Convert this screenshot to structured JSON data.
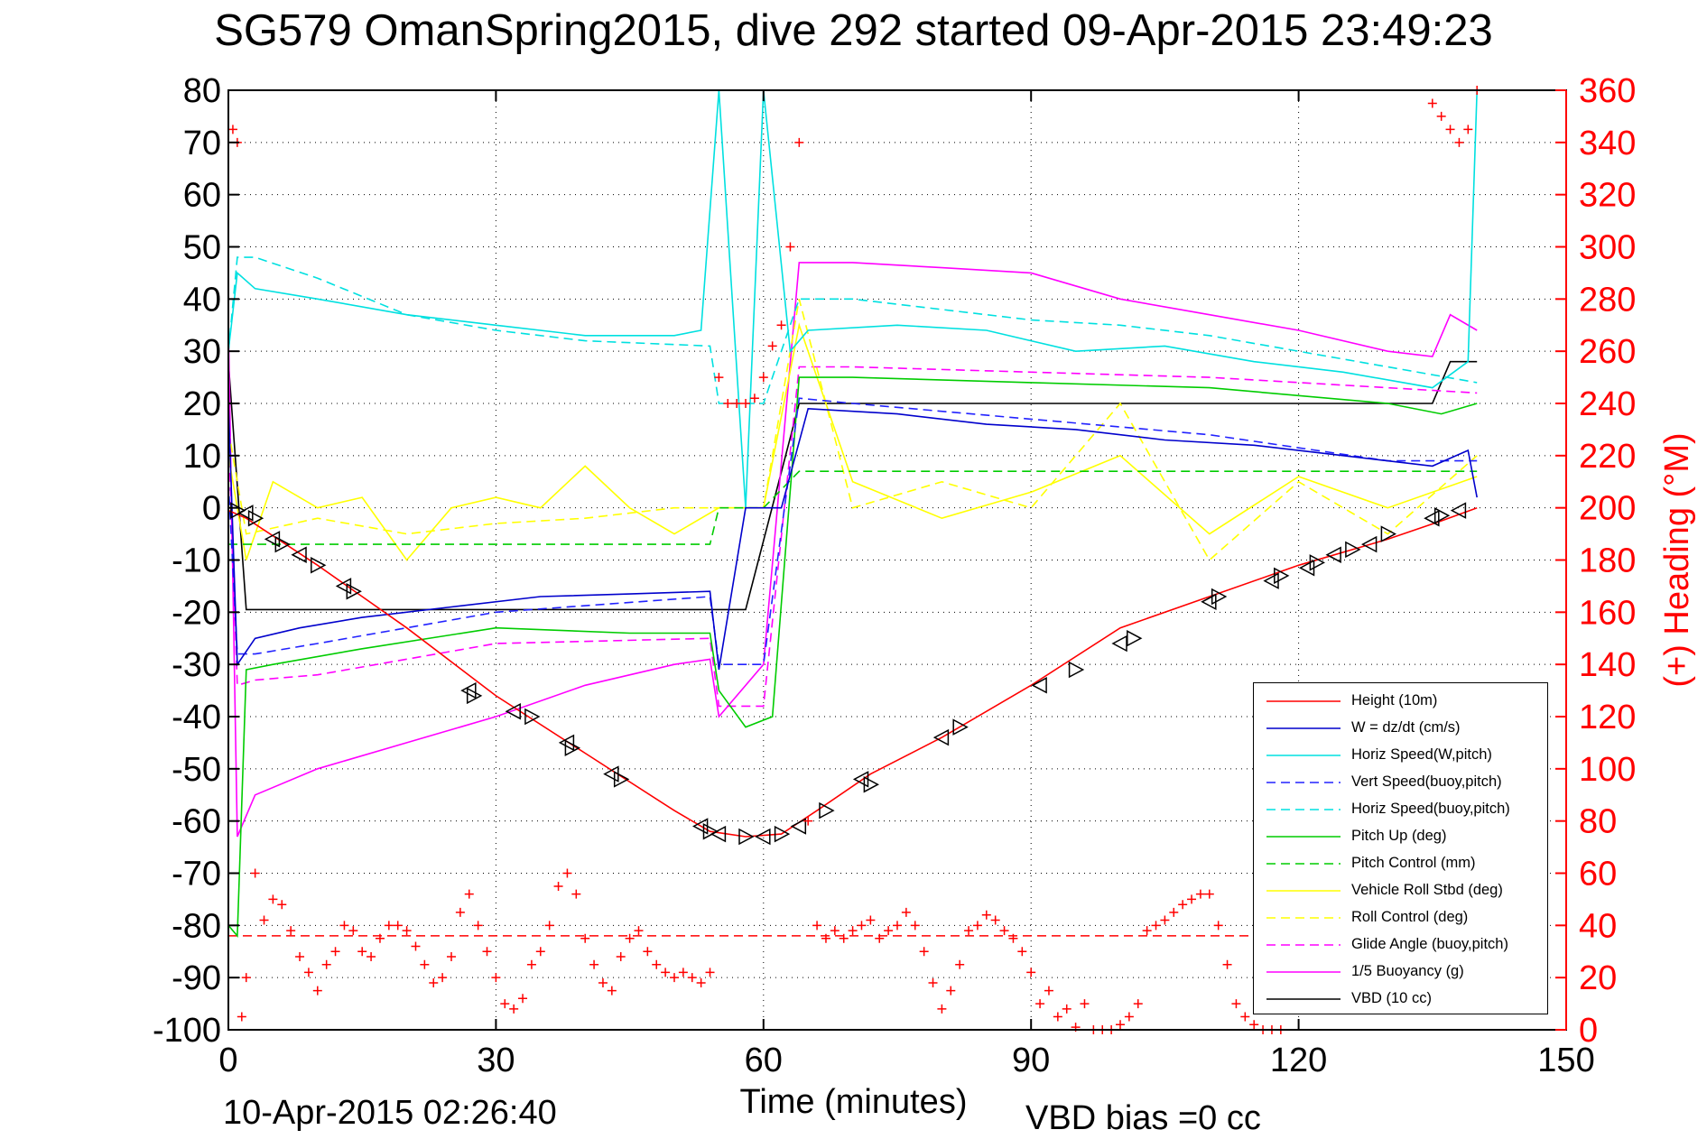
{
  "title": "SG579 OmanSpring2015, dive 292 started 09-Apr-2015 23:49:23",
  "footer": {
    "end_time": "10-Apr-2015 02:26:40",
    "vbd_bias": "VBD bias =0 cc"
  },
  "chart_data": {
    "type": "line",
    "title": "SG579 OmanSpring2015, dive 292 started 09-Apr-2015 23:49:23",
    "xlabel": "Time (minutes)",
    "ylabel": "",
    "y2label": "(+) Heading (°M)",
    "xlim": [
      0,
      150
    ],
    "ylim": [
      -100,
      80
    ],
    "y2lim": [
      0,
      360
    ],
    "x_ticks": [
      0,
      30,
      60,
      90,
      120,
      150
    ],
    "y_ticks": [
      80,
      70,
      60,
      50,
      40,
      30,
      20,
      10,
      0,
      -10,
      -20,
      -30,
      -40,
      -50,
      -60,
      -70,
      -80,
      -90,
      -100
    ],
    "y2_ticks": [
      360,
      340,
      320,
      300,
      280,
      260,
      240,
      220,
      200,
      180,
      160,
      140,
      120,
      100,
      80,
      60,
      40,
      20,
      0
    ],
    "grid": true,
    "legend_position": "lower-right",
    "series": [
      {
        "name": "Height (10m)",
        "color": "#ff0000",
        "style": "solid",
        "x": [
          0,
          2,
          10,
          20,
          30,
          40,
          50,
          54,
          58,
          62,
          66,
          72,
          80,
          90,
          100,
          110,
          120,
          130,
          136,
          140
        ],
        "y": [
          -0.5,
          -2,
          -11,
          -23,
          -36,
          -47,
          -58,
          -62,
          -63,
          -62.5,
          -58,
          -51,
          -44,
          -34,
          -23,
          -17,
          -11,
          -6,
          -2.5,
          0
        ]
      },
      {
        "name": "W = dz/dt (cm/s)",
        "color": "#0000cc",
        "style": "solid",
        "x": [
          0,
          1,
          3,
          8,
          15,
          25,
          35,
          45,
          54,
          55,
          58,
          62,
          65,
          75,
          85,
          95,
          105,
          115,
          125,
          135,
          139,
          140
        ],
        "y": [
          20,
          -30,
          -25,
          -23,
          -21,
          -19,
          -17,
          -16.5,
          -16,
          -31,
          0,
          0,
          19,
          18,
          16,
          15,
          13,
          12,
          10,
          8,
          11,
          2
        ]
      },
      {
        "name": "Horiz Speed(W,pitch)",
        "color": "#00e0e0",
        "style": "solid",
        "x": [
          0,
          1,
          3,
          10,
          20,
          30,
          40,
          50,
          53,
          55,
          58,
          60,
          63,
          65,
          75,
          85,
          95,
          105,
          115,
          125,
          135,
          139,
          140
        ],
        "y": [
          30,
          45,
          42,
          40,
          37,
          35,
          33,
          33,
          34,
          80,
          0,
          80,
          30,
          34,
          35,
          34,
          30,
          31,
          28,
          26,
          23,
          28,
          80
        ]
      },
      {
        "name": "Vert Speed(buoy,pitch)",
        "color": "#2222ff",
        "style": "dashed",
        "x": [
          0,
          1,
          3,
          10,
          30,
          54,
          55,
          60,
          64,
          70,
          90,
          110,
          130,
          140
        ],
        "y": [
          5,
          -28,
          -28,
          -26,
          -20,
          -17,
          -30,
          -30,
          21,
          20,
          17,
          14,
          9,
          9
        ]
      },
      {
        "name": "Horiz Speed(buoy,pitch)",
        "color": "#00e0e0",
        "style": "dashed",
        "x": [
          0,
          1,
          3,
          10,
          20,
          30,
          40,
          54,
          55,
          60,
          64,
          70,
          80,
          90,
          100,
          110,
          120,
          130,
          140
        ],
        "y": [
          30,
          48,
          48,
          44,
          37,
          34,
          32,
          31,
          20,
          20,
          40,
          40,
          38,
          36,
          35,
          33,
          30,
          27,
          24
        ]
      },
      {
        "name": "Pitch Up (deg)",
        "color": "#00cc00",
        "style": "solid",
        "x": [
          0,
          1,
          2,
          5,
          15,
          30,
          45,
          54,
          55,
          58,
          61,
          64,
          70,
          90,
          110,
          130,
          136,
          140
        ],
        "y": [
          -80,
          -82,
          -31,
          -30,
          -27,
          -23,
          -24,
          -24,
          -35,
          -42,
          -40,
          25,
          25,
          24,
          23,
          20,
          18,
          20
        ]
      },
      {
        "name": "Pitch Control (mm)",
        "color": "#00cc00",
        "style": "dashed",
        "x": [
          0,
          2,
          54,
          55,
          60,
          64,
          140
        ],
        "y": [
          -7,
          -7,
          -7,
          0,
          0,
          7,
          7
        ]
      },
      {
        "name": "Vehicle Roll Stbd (deg)",
        "color": "#ffff00",
        "style": "solid",
        "x": [
          0,
          2,
          5,
          10,
          15,
          20,
          25,
          30,
          35,
          40,
          45,
          50,
          55,
          60,
          64,
          70,
          80,
          90,
          100,
          110,
          120,
          130,
          140
        ],
        "y": [
          10,
          -10,
          5,
          0,
          2,
          -10,
          0,
          2,
          0,
          8,
          0,
          -5,
          0,
          0,
          35,
          5,
          -2,
          3,
          10,
          -5,
          6,
          0,
          6
        ]
      },
      {
        "name": "Roll Control (deg)",
        "color": "#ffff00",
        "style": "dashed",
        "x": [
          0,
          2,
          10,
          20,
          30,
          40,
          50,
          55,
          60,
          64,
          70,
          80,
          90,
          100,
          110,
          120,
          130,
          140
        ],
        "y": [
          15,
          -5,
          -2,
          -5,
          -3,
          -2,
          0,
          0,
          0,
          40,
          0,
          5,
          0,
          20,
          -10,
          5,
          -5,
          10
        ]
      },
      {
        "name": "Glide Angle (buoy,pitch)",
        "color": "#ff00ff",
        "style": "dashed",
        "x": [
          0,
          1,
          3,
          10,
          30,
          54,
          55,
          60,
          64,
          70,
          90,
          110,
          130,
          140
        ],
        "y": [
          15,
          -34,
          -33,
          -32,
          -26,
          -25,
          -38,
          -38,
          27,
          27,
          26,
          25,
          23,
          22
        ]
      },
      {
        "name": "1/5 Buoyancy (g)",
        "color": "#ff00ff",
        "style": "solid",
        "x": [
          0,
          1,
          3,
          10,
          20,
          30,
          40,
          50,
          54,
          55,
          60,
          64,
          70,
          80,
          90,
          100,
          110,
          120,
          130,
          135,
          137,
          140
        ],
        "y": [
          35,
          -63,
          -55,
          -50,
          -45,
          -40,
          -34,
          -30,
          -29,
          -40,
          -30,
          47,
          47,
          46,
          45,
          40,
          37,
          34,
          30,
          29,
          37,
          34
        ]
      },
      {
        "name": "VBD (10 cc)",
        "color": "#000000",
        "style": "solid",
        "x": [
          0,
          2,
          58,
          64,
          135,
          137,
          140
        ],
        "y": [
          28,
          -19.5,
          -19.5,
          20,
          20,
          28,
          28
        ]
      }
    ],
    "heading_series": {
      "name": "(+) Heading (°M)",
      "color": "#ff0000",
      "marker": "+",
      "axis": "right",
      "x": [
        0.5,
        1,
        1.5,
        2,
        3,
        4,
        5,
        6,
        7,
        8,
        9,
        10,
        11,
        12,
        13,
        14,
        15,
        16,
        17,
        18,
        19,
        20,
        21,
        22,
        23,
        24,
        25,
        26,
        27,
        28,
        29,
        30,
        31,
        32,
        33,
        34,
        35,
        36,
        37,
        38,
        39,
        40,
        41,
        42,
        43,
        44,
        45,
        46,
        47,
        48,
        49,
        50,
        51,
        52,
        53,
        54,
        55,
        56,
        57,
        58,
        59,
        60,
        61,
        62,
        63,
        64,
        65,
        66,
        67,
        68,
        69,
        70,
        71,
        72,
        73,
        74,
        75,
        76,
        77,
        78,
        79,
        80,
        81,
        82,
        83,
        84,
        85,
        86,
        87,
        88,
        89,
        90,
        91,
        92,
        93,
        94,
        95,
        96,
        97,
        98,
        99,
        100,
        101,
        102,
        103,
        104,
        105,
        106,
        107,
        108,
        109,
        110,
        111,
        112,
        113,
        114,
        115,
        116,
        117,
        118,
        135,
        136,
        137,
        138,
        139,
        140
      ],
      "y": [
        345,
        340,
        5,
        20,
        60,
        42,
        50,
        48,
        38,
        28,
        22,
        15,
        25,
        30,
        40,
        38,
        30,
        28,
        35,
        40,
        40,
        38,
        32,
        25,
        18,
        20,
        28,
        45,
        52,
        40,
        30,
        20,
        10,
        8,
        12,
        25,
        30,
        40,
        55,
        60,
        52,
        35,
        25,
        18,
        15,
        28,
        35,
        38,
        30,
        25,
        22,
        20,
        22,
        20,
        18,
        22,
        250,
        240,
        240,
        240,
        242,
        250,
        262,
        270,
        300,
        340,
        80,
        40,
        35,
        38,
        35,
        38,
        40,
        42,
        35,
        38,
        40,
        45,
        40,
        30,
        18,
        8,
        15,
        25,
        38,
        40,
        44,
        42,
        38,
        35,
        30,
        22,
        10,
        15,
        5,
        8,
        1,
        10,
        0,
        0,
        0,
        2,
        5,
        10,
        38,
        40,
        42,
        45,
        48,
        50,
        52,
        52,
        40,
        25,
        10,
        5,
        2,
        0,
        0,
        0,
        355,
        350,
        345,
        340,
        345,
        360
      ]
    },
    "turn_markers": {
      "x": [
        1,
        2,
        3,
        5,
        6,
        8,
        10,
        13,
        14,
        27,
        27.5,
        32,
        34,
        38,
        38.5,
        43,
        44,
        53,
        54,
        55,
        58,
        60,
        62,
        64,
        67,
        71,
        72,
        80,
        82,
        91,
        95,
        100,
        101.5,
        110,
        111,
        117,
        118,
        121,
        122,
        124,
        126,
        128,
        130,
        135,
        136,
        138
      ],
      "y": [
        -0.5,
        -1,
        -2,
        -6,
        -7,
        -9,
        -11,
        -15,
        -16,
        -35,
        -36,
        -39,
        -40,
        -45,
        -46,
        -51,
        -52,
        -61,
        -62,
        -62.5,
        -63,
        -63,
        -62.5,
        -61,
        -58,
        -52,
        -53,
        -44,
        -42,
        -34,
        -31,
        -26,
        -25,
        -18,
        -17,
        -14,
        -13,
        -11.5,
        -10.5,
        -9,
        -8,
        -7,
        -5,
        -2,
        -1.5,
        -0.5
      ]
    },
    "reference_lines": [
      {
        "y": -82,
        "color": "#ff0000",
        "style": "dashed",
        "x_range": [
          0,
          140
        ]
      }
    ],
    "legend_entries": [
      "Height (10m)",
      "W = dz/dt (cm/s)",
      "Horiz Speed(W,pitch)",
      "Vert Speed(buoy,pitch)",
      "Horiz Speed(buoy,pitch)",
      "Pitch Up (deg)",
      "Pitch Control (mm)",
      "Vehicle Roll Stbd (deg)",
      "Roll Control (deg)",
      "Glide Angle (buoy,pitch)",
      "1/5 Buoyancy (g)",
      "VBD (10 cc)"
    ]
  }
}
